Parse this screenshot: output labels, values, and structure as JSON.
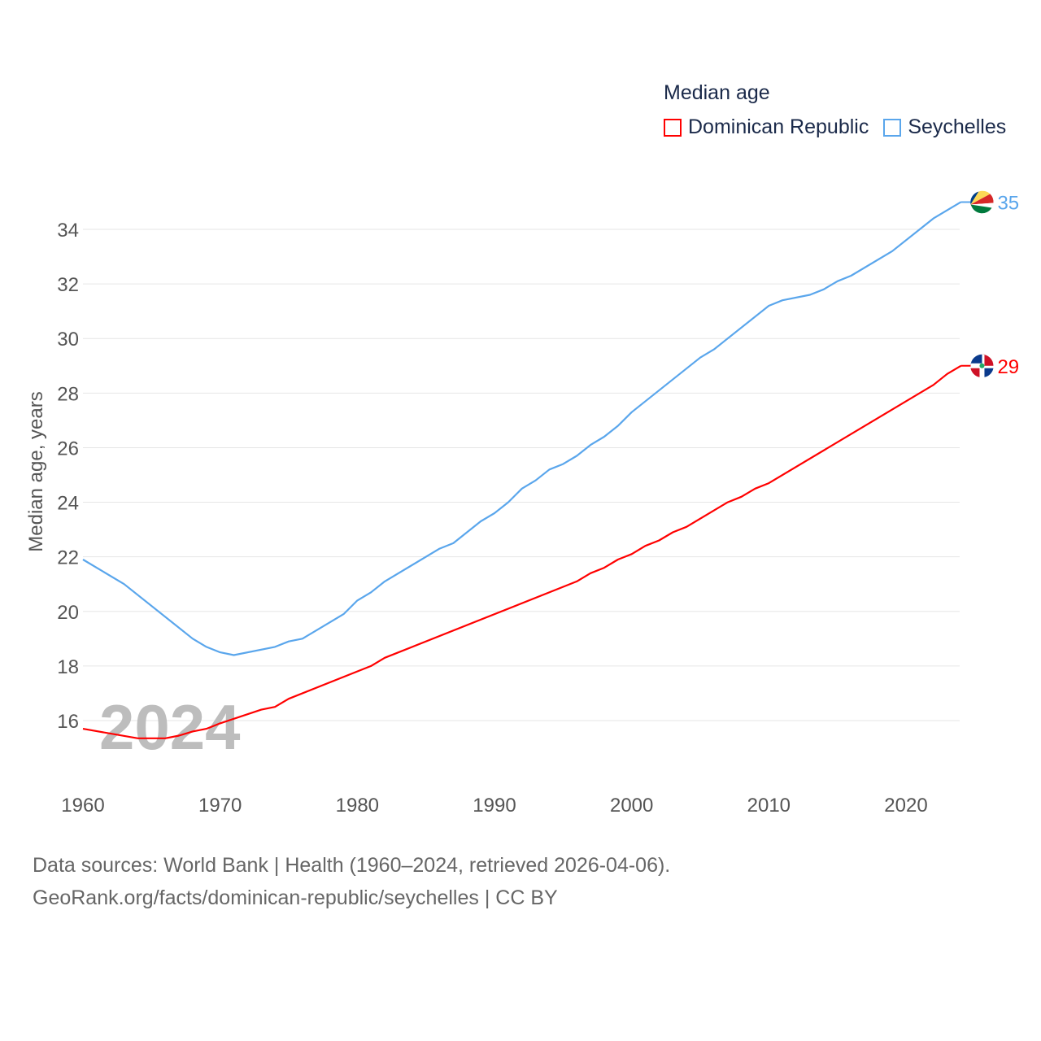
{
  "legend": {
    "title": "Median age",
    "items": [
      {
        "label": "Dominican Republic",
        "color": "#ff0000"
      },
      {
        "label": "Seychelles",
        "color": "#5aa6ec"
      }
    ]
  },
  "footer": {
    "line1": "Data sources: World Bank | Health (1960–2024, retrieved 2026-04-06).",
    "line2": "GeoRank.org/facts/dominican-republic/seychelles | CC BY"
  },
  "chart_data": {
    "type": "line",
    "title": "Median age",
    "xlabel": "",
    "ylabel": "Median age, years",
    "watermark_year": "2024",
    "xlim": [
      1960,
      2024
    ],
    "ylim": [
      14.5,
      35
    ],
    "xticks": [
      "1960",
      "1970",
      "1980",
      "1990",
      "2000",
      "2010",
      "2020"
    ],
    "yticks": [
      "16",
      "18",
      "20",
      "22",
      "24",
      "26",
      "28",
      "30",
      "32",
      "34"
    ],
    "grid": true,
    "legend_position": "top-right",
    "series": [
      {
        "name": "Dominican Republic",
        "color": "#ff0000",
        "end_label": "29",
        "x": [
          1960,
          1964,
          1966,
          1967,
          1968,
          1969,
          1970,
          1973,
          1974,
          1975,
          1981,
          1982,
          1996,
          1997,
          1998,
          1999,
          2000,
          2001,
          2002,
          2003,
          2004,
          2007,
          2008,
          2009,
          2010,
          2022,
          2023,
          2024
        ],
        "y": [
          15.7,
          15.35,
          15.35,
          15.45,
          15.6,
          15.7,
          15.9,
          16.4,
          16.5,
          16.8,
          18.0,
          18.3,
          21.1,
          21.4,
          21.6,
          21.9,
          22.1,
          22.4,
          22.6,
          22.9,
          23.1,
          24.0,
          24.2,
          24.5,
          24.7,
          28.3,
          28.7,
          29.0
        ]
      },
      {
        "name": "Seychelles",
        "color": "#5aa6ec",
        "end_label": "35",
        "x": [
          1960,
          1963,
          1968,
          1969,
          1970,
          1971,
          1974,
          1975,
          1976,
          1979,
          1980,
          1981,
          1982,
          1986,
          1987,
          1989,
          1990,
          1991,
          1992,
          1993,
          1994,
          1995,
          1996,
          1997,
          1998,
          1999,
          2000,
          2005,
          2006,
          2010,
          2011,
          2013,
          2014,
          2015,
          2016,
          2019,
          2022,
          2024
        ],
        "y": [
          21.9,
          21.0,
          19.0,
          18.7,
          18.5,
          18.4,
          18.7,
          18.9,
          19.0,
          19.9,
          20.4,
          20.7,
          21.1,
          22.3,
          22.5,
          23.3,
          23.6,
          24.0,
          24.5,
          24.8,
          25.2,
          25.4,
          25.7,
          26.1,
          26.4,
          26.8,
          27.3,
          29.3,
          29.6,
          31.2,
          31.4,
          31.6,
          31.8,
          32.1,
          32.3,
          33.2,
          34.4,
          35.0
        ]
      }
    ]
  }
}
